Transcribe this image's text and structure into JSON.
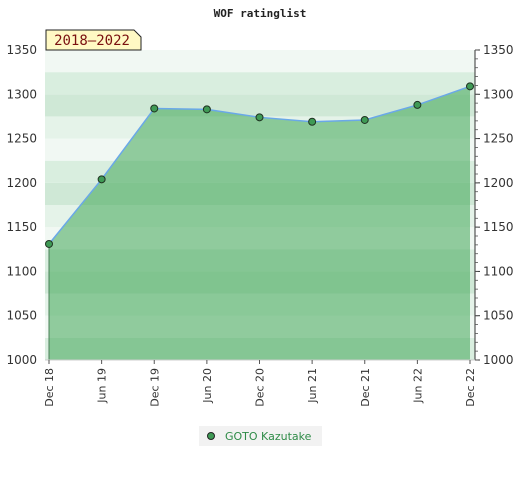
{
  "chart_data": {
    "type": "area",
    "title": "WOF ratinglist",
    "period_label": "2018–2022",
    "categories": [
      "Dec 18",
      "Jun 19",
      "Dec 19",
      "Jun 20",
      "Dec 20",
      "Jun 21",
      "Dec 21",
      "Jun 22",
      "Dec 22"
    ],
    "series": [
      {
        "name": "GOTO Kazutake",
        "color": "#6aa8e8",
        "marker_color": "#3f9a55",
        "fill_color": "#3fa656",
        "values": [
          1131,
          1204,
          1284,
          1283,
          1274,
          1269,
          1271,
          1288,
          1309
        ]
      }
    ],
    "y_ticks": [
      1000,
      1050,
      1100,
      1150,
      1200,
      1250,
      1300,
      1350
    ],
    "ylim": [
      1000,
      1350
    ],
    "grid": true,
    "y_axis_right": true,
    "legend_position": "bottom-center",
    "band_colors": [
      "#d9eedf",
      "#f1f8f3",
      "#e5f3e9",
      "#cfe8d6"
    ]
  }
}
